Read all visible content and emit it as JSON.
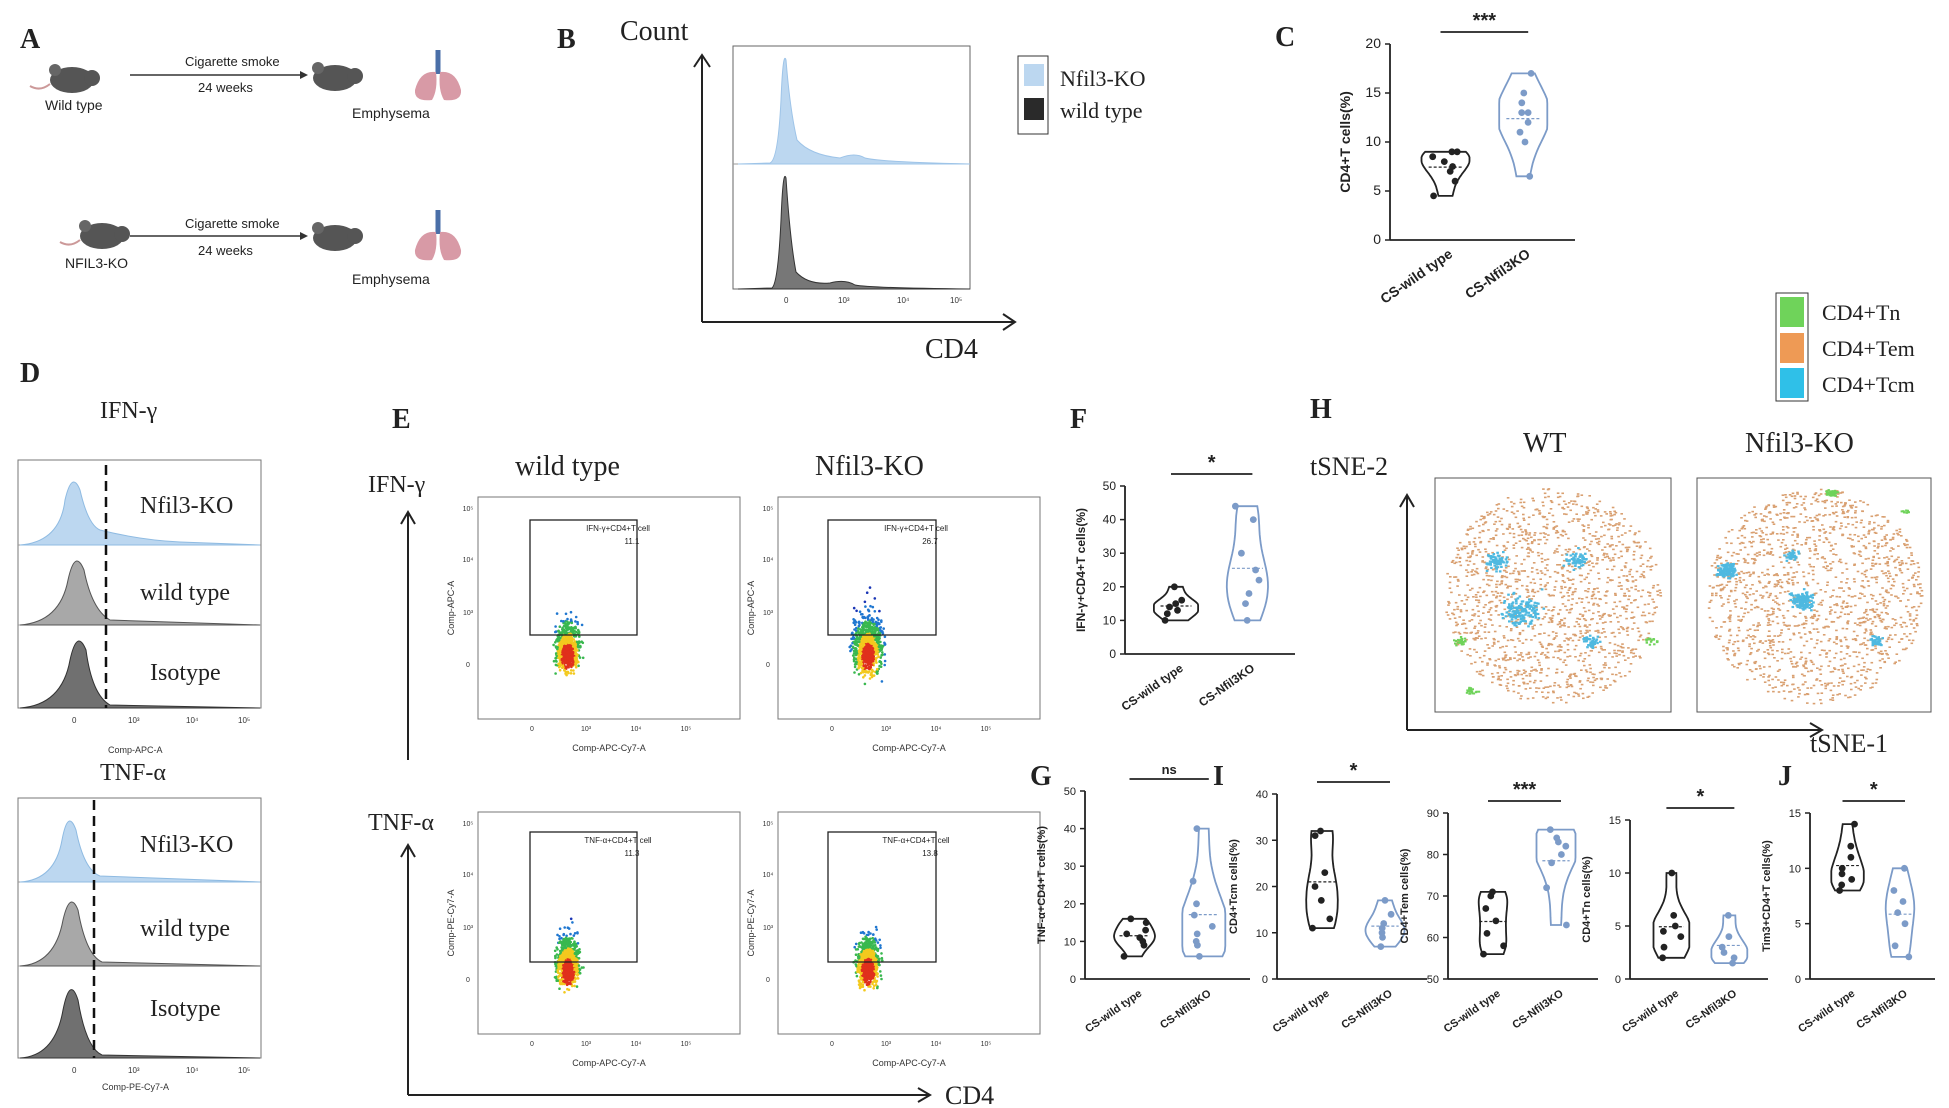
{
  "figure_labels": {
    "A": "A",
    "B": "B",
    "C": "C",
    "D": "D",
    "E": "E",
    "F": "F",
    "G": "G",
    "H": "H",
    "I": "I",
    "J": "J"
  },
  "panel_a": {
    "row1": {
      "mouse": "Wild type",
      "treatment": "Cigarette smoke",
      "duration": "24 weeks",
      "outcome": "Emphysema"
    },
    "row2": {
      "mouse": "NFIL3-KO",
      "treatment": "Cigarette smoke",
      "duration": "24 weeks",
      "outcome": "Emphysema"
    }
  },
  "panel_b": {
    "y_label": "Count",
    "x_label": "CD4",
    "legend": [
      "Nfil3-KO",
      "wild type"
    ],
    "ticks": [
      "0",
      "10³",
      "10⁴",
      "10⁵"
    ]
  },
  "panel_d": {
    "title_top": "IFN-γ",
    "title_bottom": "TNF-α",
    "rows": [
      "Nfil3-KO",
      "wild type",
      "Isotype"
    ],
    "xaxis_top": "Comp-APC-A",
    "xaxis_bottom": "Comp-PE-Cy7-A",
    "ticks": [
      "0",
      "10³",
      "10⁴",
      "10⁵"
    ]
  },
  "panel_e": {
    "col_wt": "wild type",
    "col_ko": "Nfil3-KO",
    "row_ifn": "IFN-γ",
    "row_tnf": "TNF-α",
    "x_label": "CD4",
    "plots": [
      {
        "gate": "IFN-γ+CD4+T cell",
        "pct": "11.1",
        "xaxis": "Comp-APC-Cy7-A",
        "yaxis": "Comp-APC-A"
      },
      {
        "gate": "IFN-γ+CD4+T cell",
        "pct": "26.7",
        "xaxis": "Comp-APC-Cy7-A",
        "yaxis": "Comp-APC-A"
      },
      {
        "gate": "TNF-α+CD4+T cell",
        "pct": "11.3",
        "xaxis": "Comp-APC-Cy7-A",
        "yaxis": "Comp-PE-Cy7-A"
      },
      {
        "gate": "TNF-α+CD4+T cell",
        "pct": "13.8",
        "xaxis": "Comp-APC-Cy7-A",
        "yaxis": "Comp-PE-Cy7-A"
      }
    ],
    "yticks": [
      "10⁵",
      "10⁴",
      "10³",
      "0"
    ],
    "xticks": [
      "0",
      "10³",
      "10⁴",
      "10⁵"
    ]
  },
  "panel_h": {
    "legend": [
      "CD4+Tn",
      "CD4+Tem",
      "CD4+Tcm"
    ],
    "col_wt": "WT",
    "col_ko": "Nfil3-KO",
    "y_label": "tSNE-2",
    "x_label": "tSNE-1",
    "colors": {
      "tn": "#6fd35a",
      "tem": "#d9a071",
      "tcm": "#4fb9e0"
    }
  },
  "chart_data": [
    {
      "id": "C",
      "type": "violin",
      "categories": [
        "CS-wild type",
        "CS-Nfil3KO"
      ],
      "ylabel": "CD4+T cells(%)",
      "ylim": [
        0,
        20
      ],
      "yticks": [
        0,
        5,
        10,
        15,
        20
      ],
      "significance": "***",
      "series": [
        {
          "name": "CS-wild type",
          "values": [
            4.5,
            6,
            7,
            7.5,
            8,
            8.5,
            9,
            9
          ]
        },
        {
          "name": "CS-Nfil3KO",
          "values": [
            6.5,
            10,
            11,
            12,
            13,
            13,
            14,
            15,
            17
          ]
        }
      ]
    },
    {
      "id": "F",
      "type": "violin",
      "categories": [
        "CS-wild type",
        "CS-Nfil3KO"
      ],
      "ylabel": "IFN-γ+CD4+T cells(%)",
      "ylim": [
        0,
        50
      ],
      "yticks": [
        0,
        10,
        20,
        30,
        40,
        50
      ],
      "significance": "*",
      "series": [
        {
          "name": "CS-wild type",
          "values": [
            10,
            12,
            13,
            14,
            15,
            16,
            20
          ]
        },
        {
          "name": "CS-Nfil3KO",
          "values": [
            10,
            15,
            18,
            22,
            25,
            30,
            40,
            44
          ]
        }
      ]
    },
    {
      "id": "G",
      "type": "violin",
      "categories": [
        "CS-wild type",
        "CS-Nfil3KO"
      ],
      "ylabel": "TNF-α+CD4+T cells(%)",
      "ylim": [
        0,
        50
      ],
      "yticks": [
        0,
        10,
        20,
        30,
        40,
        50
      ],
      "significance": "ns",
      "series": [
        {
          "name": "CS-wild type",
          "values": [
            6,
            9,
            10,
            11,
            12,
            13,
            15,
            16
          ]
        },
        {
          "name": "CS-Nfil3KO",
          "values": [
            6,
            9,
            10,
            12,
            14,
            17,
            20,
            26,
            40
          ]
        }
      ]
    },
    {
      "id": "I1",
      "type": "violin",
      "categories": [
        "CS-wild type",
        "CS-Nfil3KO"
      ],
      "ylabel": "CD4+Tcm cells(%)",
      "ylim": [
        0,
        40
      ],
      "yticks": [
        0,
        10,
        20,
        30,
        40
      ],
      "significance": "*",
      "series": [
        {
          "name": "CS-wild type",
          "values": [
            11,
            13,
            17,
            20,
            23,
            31,
            32
          ]
        },
        {
          "name": "CS-Nfil3KO",
          "values": [
            7,
            9,
            10,
            11,
            12,
            14,
            17
          ]
        }
      ]
    },
    {
      "id": "I2",
      "type": "violin",
      "categories": [
        "CS-wild type",
        "CS-Nfil3KO"
      ],
      "ylabel": "CD4+Tem cells(%)",
      "ylim": [
        50,
        90
      ],
      "yticks": [
        50,
        60,
        70,
        80,
        90
      ],
      "significance": "***",
      "series": [
        {
          "name": "CS-wild type",
          "values": [
            56,
            58,
            61,
            64,
            67,
            70,
            71
          ]
        },
        {
          "name": "CS-Nfil3KO",
          "values": [
            63,
            72,
            78,
            80,
            82,
            83,
            84,
            86
          ]
        }
      ]
    },
    {
      "id": "I3",
      "type": "violin",
      "categories": [
        "CS-wild type",
        "CS-Nfil3KO"
      ],
      "ylabel": "CD4+Tn cells(%)",
      "ylim": [
        0,
        15
      ],
      "yticks": [
        0,
        5,
        10,
        15
      ],
      "significance": "*",
      "series": [
        {
          "name": "CS-wild type",
          "values": [
            2,
            3,
            4,
            4.5,
            5,
            6,
            10
          ]
        },
        {
          "name": "CS-Nfil3KO",
          "values": [
            1.5,
            2,
            2.5,
            3,
            4,
            6
          ]
        }
      ]
    },
    {
      "id": "J",
      "type": "violin",
      "categories": [
        "CS-wild type",
        "CS-Nfil3KO"
      ],
      "ylabel": "Tim3+CD4+T cells(%)",
      "ylim": [
        0,
        15
      ],
      "yticks": [
        0,
        5,
        10,
        15
      ],
      "significance": "*",
      "series": [
        {
          "name": "CS-wild type",
          "values": [
            8,
            8.5,
            9,
            9.5,
            10,
            11,
            12,
            14
          ]
        },
        {
          "name": "CS-Nfil3KO",
          "values": [
            2,
            3,
            5,
            6,
            7,
            8,
            10
          ]
        }
      ]
    }
  ]
}
